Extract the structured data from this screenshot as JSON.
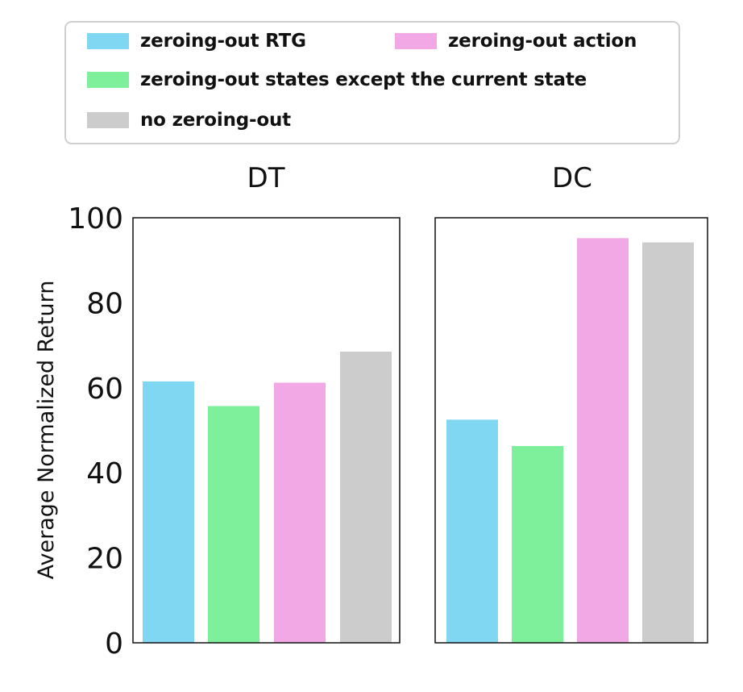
{
  "legend": {
    "items": [
      {
        "label": "zeroing-out RTG",
        "color": "#7fd7f1"
      },
      {
        "label": "zeroing-out action",
        "color": "#f2a8e4"
      },
      {
        "label": "zeroing-out states except the current state",
        "color": "#7ef09c"
      },
      {
        "label": "no zeroing-out",
        "color": "#cccccc"
      }
    ]
  },
  "chart_data": {
    "type": "bar",
    "ylabel": "Average Normalized Return",
    "ylim": [
      0,
      100
    ],
    "yticks": [
      0,
      20,
      40,
      60,
      80,
      100
    ],
    "legend_position": "top",
    "grid": false,
    "series_names": [
      "zeroing-out RTG",
      "zeroing-out states except the current state",
      "zeroing-out action",
      "no zeroing-out"
    ],
    "series_colors": [
      "#7fd7f1",
      "#7ef09c",
      "#f2a8e4",
      "#cccccc"
    ],
    "panels": [
      {
        "title": "DT",
        "values": [
          61.5,
          55.7,
          61.2,
          68.5
        ]
      },
      {
        "title": "DC",
        "values": [
          52.5,
          46.3,
          95.2,
          94.2
        ]
      }
    ]
  }
}
